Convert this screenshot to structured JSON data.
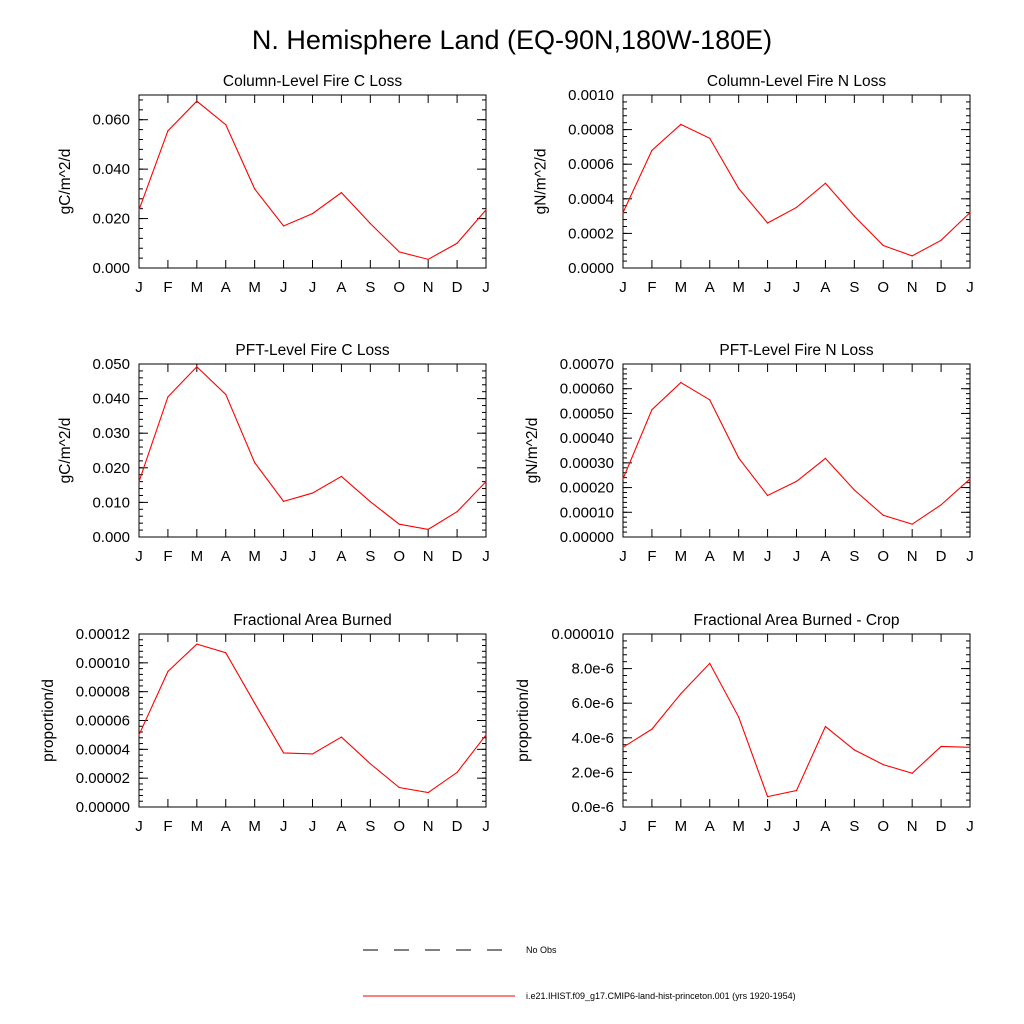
{
  "title": "N. Hemisphere Land (EQ-90N,180W-180E)",
  "colors": {
    "series": "#ff0000",
    "axis": "#000000",
    "background": "#ffffff",
    "obs": "#000000"
  },
  "legend": {
    "obs_label": "No Obs",
    "model_label": "i.e21.IHIST.f09_g17.CMIP6-land-hist-princeton.001 (yrs 1920-1954)"
  },
  "chart_data": [
    {
      "type": "line",
      "title": "Column-Level Fire C Loss",
      "ylabel": "gC/m^2/d",
      "categories": [
        "J",
        "F",
        "M",
        "A",
        "M",
        "J",
        "J",
        "A",
        "S",
        "O",
        "N",
        "D",
        "J"
      ],
      "yticks": [
        "0.000",
        "0.020",
        "0.040",
        "0.060"
      ],
      "ytick_values": [
        0,
        0.02,
        0.04,
        0.06
      ],
      "ylim": [
        0,
        0.07
      ],
      "series": [
        {
          "values": [
            0.0235,
            0.0555,
            0.0675,
            0.058,
            0.032,
            0.017,
            0.022,
            0.0305,
            0.018,
            0.0065,
            0.0035,
            0.01,
            0.0235
          ]
        }
      ]
    },
    {
      "type": "line",
      "title": "Column-Level Fire N Loss",
      "ylabel": "gN/m^2/d",
      "categories": [
        "J",
        "F",
        "M",
        "A",
        "M",
        "J",
        "J",
        "A",
        "S",
        "O",
        "N",
        "D",
        "J"
      ],
      "yticks": [
        "0.0000",
        "0.0002",
        "0.0004",
        "0.0006",
        "0.0008",
        "0.0010"
      ],
      "ytick_values": [
        0,
        0.0002,
        0.0004,
        0.0006,
        0.0008,
        0.001
      ],
      "ylim": [
        0,
        0.001
      ],
      "series": [
        {
          "values": [
            0.00032,
            0.00068,
            0.00083,
            0.00075,
            0.00046,
            0.00026,
            0.00035,
            0.00049,
            0.0003,
            0.00013,
            7e-05,
            0.00016,
            0.00032
          ]
        }
      ]
    },
    {
      "type": "line",
      "title": "PFT-Level Fire C Loss",
      "ylabel": "gC/m^2/d",
      "categories": [
        "J",
        "F",
        "M",
        "A",
        "M",
        "J",
        "J",
        "A",
        "S",
        "O",
        "N",
        "D",
        "J"
      ],
      "yticks": [
        "0.000",
        "0.010",
        "0.020",
        "0.030",
        "0.040",
        "0.050"
      ],
      "ytick_values": [
        0,
        0.01,
        0.02,
        0.03,
        0.04,
        0.05
      ],
      "ylim": [
        0,
        0.05
      ],
      "series": [
        {
          "values": [
            0.016,
            0.0405,
            0.0492,
            0.0412,
            0.0215,
            0.0103,
            0.0127,
            0.0175,
            0.0102,
            0.0037,
            0.0022,
            0.0073,
            0.016
          ]
        }
      ]
    },
    {
      "type": "line",
      "title": "PFT-Level Fire N Loss",
      "ylabel": "gN/m^2/d",
      "categories": [
        "J",
        "F",
        "M",
        "A",
        "M",
        "J",
        "J",
        "A",
        "S",
        "O",
        "N",
        "D",
        "J"
      ],
      "yticks": [
        "0.00000",
        "0.00010",
        "0.00020",
        "0.00030",
        "0.00040",
        "0.00050",
        "0.00060",
        "0.00070"
      ],
      "ytick_values": [
        0,
        0.0001,
        0.0002,
        0.0003,
        0.0004,
        0.0005,
        0.0006,
        0.0007
      ],
      "ylim": [
        0,
        0.0007
      ],
      "series": [
        {
          "values": [
            0.000235,
            0.000515,
            0.000625,
            0.000555,
            0.00032,
            0.000168,
            0.000225,
            0.000318,
            0.00019,
            8.8e-05,
            5.2e-05,
            0.00013,
            0.000235
          ]
        }
      ]
    },
    {
      "type": "line",
      "title": "Fractional Area Burned",
      "ylabel": "proportion/d",
      "categories": [
        "J",
        "F",
        "M",
        "A",
        "M",
        "J",
        "J",
        "A",
        "S",
        "O",
        "N",
        "D",
        "J"
      ],
      "yticks": [
        "0.00000",
        "0.00002",
        "0.00004",
        "0.00006",
        "0.00008",
        "0.00010",
        "0.00012"
      ],
      "ytick_values": [
        0,
        2e-05,
        4e-05,
        6e-05,
        8e-05,
        0.0001,
        0.00012
      ],
      "ylim": [
        0,
        0.00012
      ],
      "series": [
        {
          "values": [
            5e-05,
            9.4e-05,
            0.000113,
            0.000107,
            7.2e-05,
            3.75e-05,
            3.68e-05,
            4.85e-05,
            3e-05,
            1.35e-05,
            1e-05,
            2.4e-05,
            5e-05
          ]
        }
      ]
    },
    {
      "type": "line",
      "title": "Fractional Area Burned - Crop",
      "ylabel": "proportion/d",
      "categories": [
        "J",
        "F",
        "M",
        "A",
        "M",
        "J",
        "J",
        "A",
        "S",
        "O",
        "N",
        "D",
        "J"
      ],
      "yticks": [
        "0.0e-6",
        "2.0e-6",
        "4.0e-6",
        "6.0e-6",
        "8.0e-6",
        "0.000010"
      ],
      "ytick_values": [
        0,
        2e-06,
        4e-06,
        6e-06,
        8e-06,
        1e-05
      ],
      "ylim": [
        0,
        1e-05
      ],
      "series": [
        {
          "values": [
            3.45e-06,
            4.5e-06,
            6.55e-06,
            8.3e-06,
            5.2e-06,
            6e-07,
            9.5e-07,
            4.65e-06,
            3.3e-06,
            2.45e-06,
            1.95e-06,
            3.5e-06,
            3.45e-06
          ]
        }
      ]
    }
  ]
}
